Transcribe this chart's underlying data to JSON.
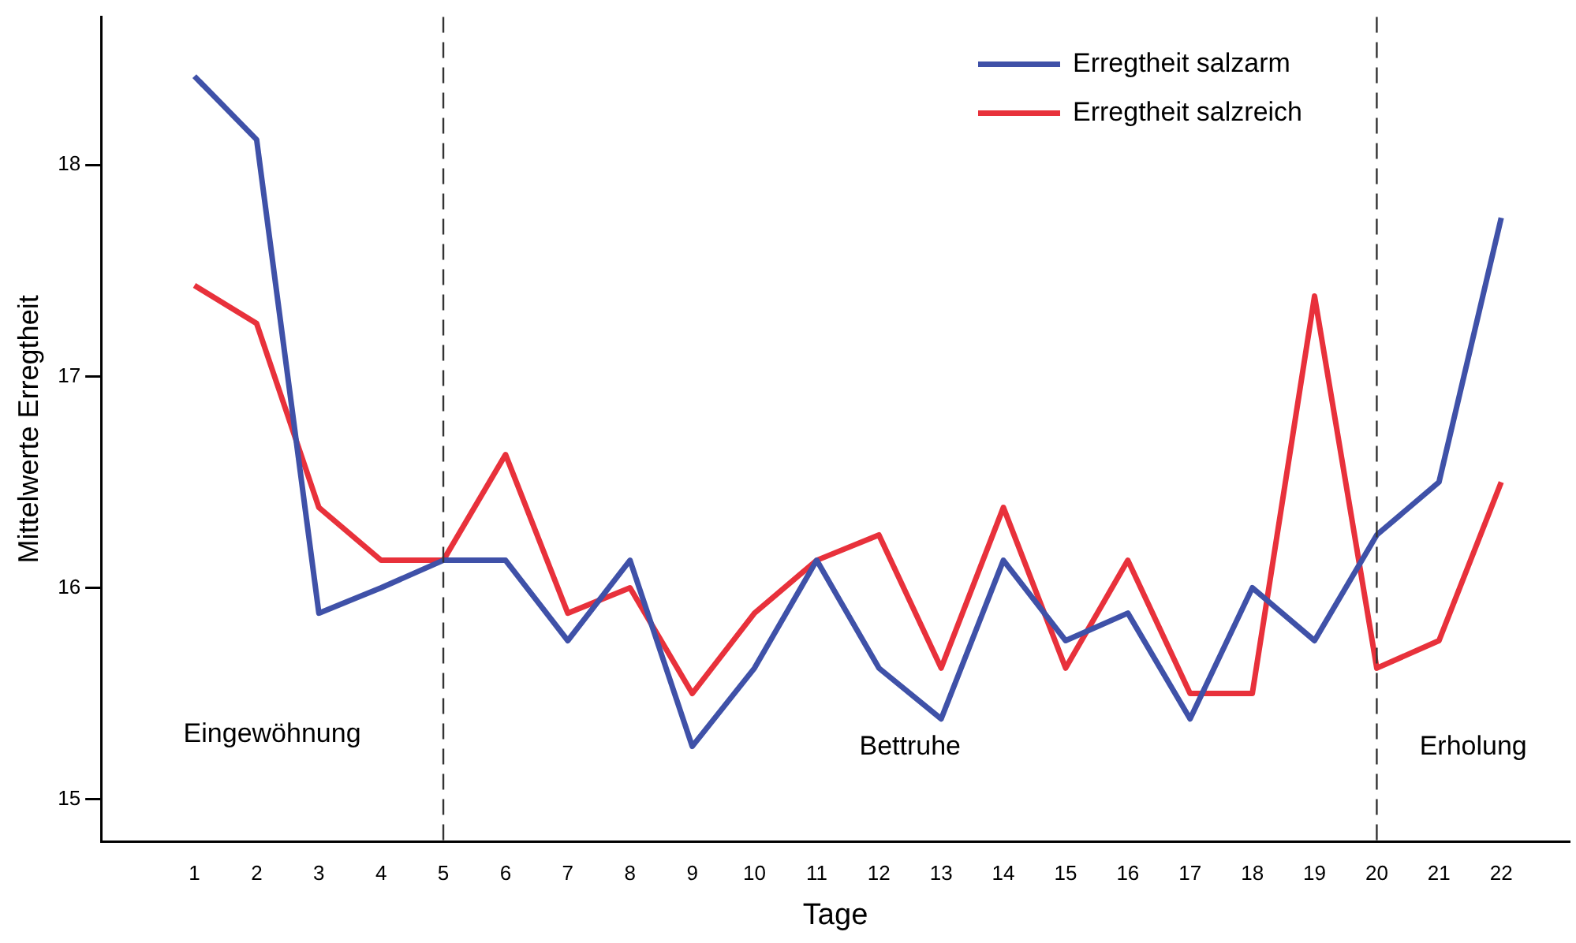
{
  "chart_data": {
    "type": "line",
    "xlabel": "Tage",
    "ylabel": "Mittelwerte Erregtheit",
    "x": [
      1,
      2,
      3,
      4,
      5,
      6,
      7,
      8,
      9,
      10,
      11,
      12,
      13,
      14,
      15,
      16,
      17,
      18,
      19,
      20,
      21,
      22
    ],
    "xlim": [
      -0.5,
      23.1
    ],
    "xticks": [
      1,
      2,
      3,
      4,
      5,
      6,
      7,
      8,
      9,
      10,
      11,
      12,
      13,
      14,
      15,
      16,
      17,
      18,
      19,
      20,
      21,
      22
    ],
    "ylim": [
      14.8,
      18.7
    ],
    "yticks": [
      15,
      16,
      17,
      18
    ],
    "series": [
      {
        "name": "Erregtheit salzarm",
        "color": "#3f51a8",
        "values": [
          18.42,
          18.12,
          15.88,
          16.0,
          16.13,
          16.13,
          15.75,
          16.13,
          15.25,
          15.62,
          16.13,
          15.62,
          15.38,
          16.13,
          15.75,
          15.88,
          15.38,
          16.0,
          15.75,
          16.25,
          16.5,
          17.75
        ]
      },
      {
        "name": "Erregtheit salzreich",
        "color": "#e8313b",
        "values": [
          17.43,
          17.25,
          16.38,
          16.13,
          16.13,
          16.63,
          15.88,
          16.0,
          15.5,
          15.88,
          16.13,
          16.25,
          15.62,
          16.38,
          15.62,
          16.13,
          15.5,
          15.5,
          17.38,
          15.62,
          15.75,
          16.5
        ]
      }
    ],
    "ref_lines": [
      {
        "axis": "x",
        "value": 5,
        "line_style": "dashed",
        "color": "#333333"
      },
      {
        "axis": "x",
        "value": 20,
        "line_style": "dashed",
        "color": "#333333"
      }
    ],
    "annotations": [
      "Eingewöhnung",
      "Bettruhe",
      "Erholung"
    ],
    "legend": "top right",
    "grid": false,
    "marker": "none",
    "line_style": "solid"
  }
}
